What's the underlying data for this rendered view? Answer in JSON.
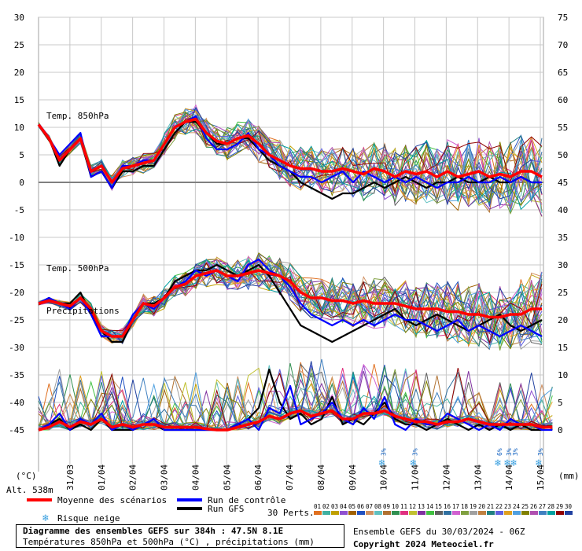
{
  "chart_data": {
    "type": "line",
    "title": "Diagramme des ensembles GEFS sur 384h : 47.5N 8.1E",
    "subtitle": "Températures 850hPa et 500hPa (°C) , précipitations (mm)",
    "left_axis": {
      "unit": "(°C)",
      "ticks": [
        30,
        25,
        20,
        15,
        10,
        5,
        0,
        -5,
        -10,
        -15,
        -20,
        -25,
        -30,
        -35,
        -40,
        -45
      ],
      "range": [
        -45,
        30
      ]
    },
    "right_axis": {
      "unit": "(mm)",
      "ticks": [
        75,
        70,
        65,
        60,
        55,
        50,
        45,
        40,
        35,
        30,
        25,
        20,
        15,
        10,
        5,
        0
      ],
      "range": [
        0,
        75
      ]
    },
    "x_ticks": [
      "31/03",
      "01/04",
      "02/04",
      "03/04",
      "04/04",
      "05/04",
      "06/04",
      "07/04",
      "08/04",
      "09/04",
      "10/04",
      "11/04",
      "12/04",
      "13/04",
      "14/04",
      "15/04"
    ],
    "altitude": "Alt. 538m",
    "panel_labels": {
      "t850": "Temp. 850hPa",
      "t500": "Temp. 500hPa",
      "precip": "Précipitations"
    },
    "grid": true,
    "legend": {
      "mean": "Moyenne des scénarios",
      "control": "Run de contrôle",
      "gfs": "Run GFS",
      "snow": "Risque neige",
      "perts_label": "30 Perts.",
      "perts": [
        "01",
        "02",
        "03",
        "04",
        "05",
        "06",
        "07",
        "08",
        "09",
        "10",
        "11",
        "12",
        "13",
        "14",
        "15",
        "16",
        "17",
        "18",
        "19",
        "20",
        "21",
        "22",
        "23",
        "24",
        "25",
        "26",
        "27",
        "28",
        "29",
        "30"
      ],
      "pert_colors": [
        "#e07020",
        "#40b0a0",
        "#c0a000",
        "#9050d0",
        "#a06000",
        "#2050c0",
        "#d09060",
        "#60c0c0",
        "#b07030",
        "#309050",
        "#e03080",
        "#c0c030",
        "#8030a0",
        "#40c040",
        "#606060",
        "#3070a0",
        "#d060d0",
        "#80a040",
        "#a0a0a0",
        "#c08040",
        "#208080",
        "#6060e0",
        "#e0a020",
        "#50a0e0",
        "#808000",
        "#b050b0",
        "#4080c0",
        "#00a0a0",
        "#900000",
        "#2040a0"
      ]
    },
    "snow_markers": [
      {
        "label": "3%",
        "x_index": 11.0
      },
      {
        "label": "3%",
        "x_index": 12.0
      },
      {
        "label": "6%",
        "x_index": 14.7
      },
      {
        "label": "3%",
        "x_index": 15.0
      },
      {
        "label": "3%",
        "x_index": 15.2
      },
      {
        "label": "3%",
        "x_index": 16.0
      }
    ],
    "series": [
      {
        "name": "Moyenne des scénarios",
        "role": "mean",
        "color": "#ff0000",
        "t850": [
          10.5,
          8,
          4,
          6,
          8,
          2,
          3,
          0,
          2.5,
          3,
          3.5,
          4,
          7,
          10,
          11,
          11.5,
          9,
          7.5,
          7,
          8,
          8.5,
          7,
          5,
          4,
          3,
          2.5,
          2.5,
          2,
          2,
          2.5,
          2,
          1.5,
          2.5,
          2,
          1,
          2,
          1.5,
          2,
          1,
          2,
          1,
          1.5,
          2,
          1,
          1.5,
          1,
          2,
          2,
          1
        ],
        "t500": [
          -22,
          -21.5,
          -22,
          -22.5,
          -21,
          -23,
          -27,
          -28,
          -28,
          -25,
          -22,
          -22.5,
          -21,
          -19,
          -18.5,
          -17,
          -16.5,
          -16,
          -17,
          -17,
          -16.5,
          -16,
          -16.5,
          -17,
          -18,
          -20,
          -21,
          -21,
          -21.5,
          -21.5,
          -22,
          -21.5,
          -22,
          -22,
          -22,
          -22.5,
          -23,
          -23,
          -23,
          -23.5,
          -23.5,
          -24,
          -24,
          -24.5,
          -24.5,
          -24,
          -24,
          -23,
          -23
        ],
        "precip": [
          0,
          0.5,
          1.5,
          0.5,
          1.5,
          1,
          2,
          0.5,
          1,
          0.5,
          1,
          1,
          0.5,
          0.5,
          0.5,
          0.5,
          0.2,
          0,
          0,
          0.5,
          1,
          1.5,
          2.5,
          2,
          3,
          3.5,
          2.5,
          3,
          3.5,
          2,
          2,
          3,
          3,
          3.5,
          2.5,
          2,
          1.5,
          1.5,
          1,
          1.5,
          1.5,
          2,
          1.5,
          1,
          1,
          1,
          1,
          1,
          0.5,
          0.5
        ]
      },
      {
        "name": "Run de contrôle",
        "role": "control",
        "color": "#0000ff",
        "t850": [
          10.5,
          8,
          5,
          7,
          9,
          1,
          2,
          -1,
          3,
          3,
          4,
          4,
          7,
          10,
          11,
          12,
          8,
          6,
          6,
          7,
          9,
          6,
          5,
          3,
          2,
          1,
          1,
          0,
          1,
          2,
          0,
          2,
          1,
          0,
          1,
          0,
          1,
          0,
          -1,
          0,
          0,
          1,
          0,
          0,
          1,
          0,
          1,
          0,
          0
        ],
        "t500": [
          -22,
          -21,
          -22,
          -23,
          -21,
          -24,
          -28,
          -28,
          -28,
          -24,
          -22,
          -23,
          -21,
          -19,
          -18,
          -16,
          -17,
          -16,
          -17,
          -18,
          -15,
          -14,
          -16,
          -17,
          -19,
          -22,
          -24,
          -25,
          -26,
          -25,
          -26,
          -25,
          -26,
          -25,
          -24,
          -25,
          -25,
          -26,
          -27,
          -26,
          -25,
          -27,
          -26,
          -27,
          -28,
          -27,
          -26,
          -27,
          -28
        ],
        "precip": [
          0,
          1,
          3,
          0,
          2,
          1,
          3,
          0,
          1,
          0,
          1,
          2,
          0,
          0,
          0,
          0,
          0,
          0,
          0,
          1,
          2,
          0,
          4,
          3,
          8,
          1,
          2,
          3,
          5,
          2,
          1,
          4,
          2,
          6,
          1,
          0,
          2,
          1,
          1,
          3,
          2,
          1,
          0,
          1,
          0,
          2,
          1,
          1,
          0,
          0
        ]
      },
      {
        "name": "Run GFS",
        "role": "gfs",
        "color": "#000000",
        "t850": [
          10.5,
          8,
          3,
          6,
          8,
          1,
          2,
          -1,
          2,
          2,
          3,
          3,
          6,
          9,
          11,
          11,
          9,
          7,
          7,
          8,
          8,
          6,
          4,
          3,
          2,
          0,
          -1,
          -2,
          -3,
          -2,
          -2,
          -1,
          0,
          -1,
          0,
          1,
          0,
          -1,
          0,
          0,
          1,
          0,
          0,
          1,
          0,
          0,
          1,
          0,
          0
        ],
        "t500": [
          -22,
          -21,
          -22,
          -22,
          -20,
          -24,
          -27,
          -29,
          -29,
          -25,
          -22,
          -22,
          -21,
          -18,
          -17,
          -16,
          -16,
          -15,
          -16,
          -17,
          -16,
          -15,
          -17,
          -20,
          -23,
          -26,
          -27,
          -28,
          -29,
          -28,
          -27,
          -26,
          -25,
          -24,
          -23,
          -25,
          -26,
          -25,
          -24,
          -25,
          -26,
          -27,
          -26,
          -25,
          -24,
          -26,
          -27,
          -26,
          -25
        ],
        "precip": [
          0,
          1,
          2,
          0,
          1,
          0,
          2,
          0,
          0,
          0,
          1,
          1,
          0,
          0,
          0,
          0,
          0,
          0,
          0,
          1,
          2,
          4,
          11,
          5,
          2,
          3,
          1,
          2,
          6,
          1,
          2,
          1,
          3,
          5,
          2,
          1,
          1,
          0,
          1,
          2,
          1,
          0,
          1,
          0,
          1,
          0,
          1,
          0,
          0
        ]
      }
    ],
    "members_count": 30
  }
}
